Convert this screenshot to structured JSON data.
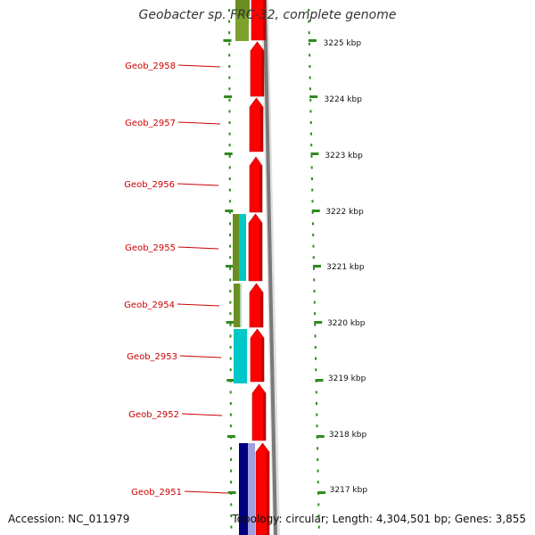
{
  "genome_title": "Geobacter sp. FRC-32, complete genome",
  "accession": "Accession: NC_011979",
  "summary": "Topology: circular; Length: 4,304,501 bp; Genes: 3,855",
  "colors": {
    "forward_cds": "#ff0000",
    "backbone": "#7a7a7a",
    "ticks": "#2f8a1e",
    "label": "#cc0000",
    "olive_feature": "#6b8e23",
    "cyan_feature": "#00c8c8",
    "navy_feature": "#000080",
    "lavender_feature": "#a0a0e0"
  },
  "scale_labels": [
    "3225 kbp",
    "3224 kbp",
    "3223 kbp",
    "3222 kbp",
    "3221 kbp",
    "3220 kbp",
    "3219 kbp",
    "3218 kbp",
    "3217 kbp"
  ],
  "gene_labels": [
    "Geob_2958",
    "Geob_2957",
    "Geob_2956",
    "Geob_2955",
    "Geob_2954",
    "Geob_2953",
    "Geob_2952",
    "Geob_2951"
  ]
}
